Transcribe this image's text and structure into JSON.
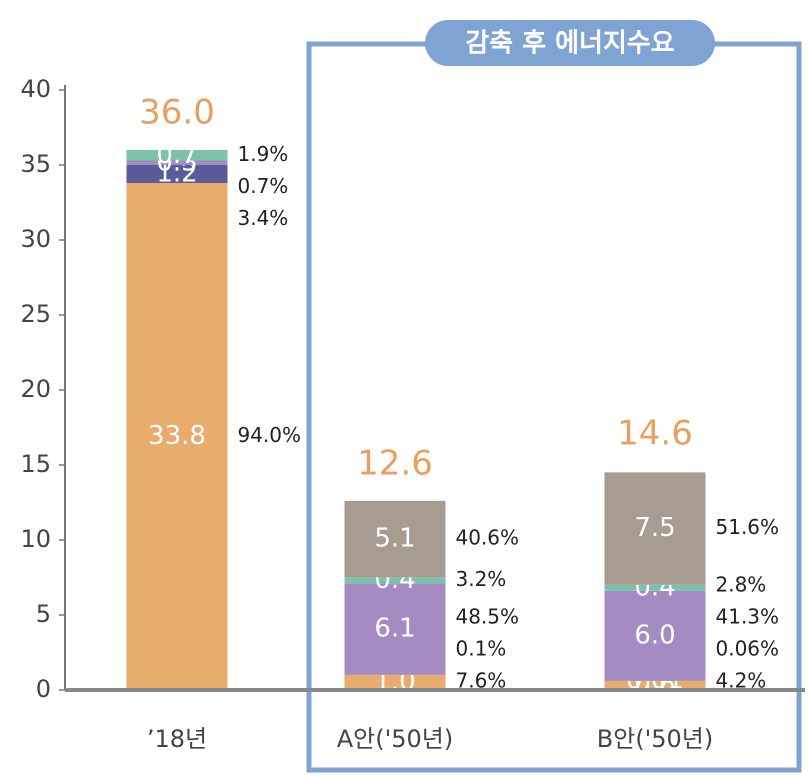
{
  "chart_data": {
    "type": "stacked-bar",
    "box_title": "감축 후 에너지수요",
    "categories": [
      "’18년",
      "A안('50년)",
      "B안('50년)"
    ],
    "ylim": [
      0,
      40
    ],
    "yticks": [
      0,
      5,
      10,
      15,
      20,
      25,
      30,
      35,
      40
    ],
    "totals": [
      36.0,
      12.6,
      14.6
    ],
    "total_labels": [
      "36.0",
      "12.6",
      "14.6"
    ],
    "series": [
      {
        "color": "#e8ac6c",
        "values": [
          33.8,
          1.0,
          0.6
        ],
        "value_labels": [
          "33.8",
          "1.0",
          "0.6"
        ],
        "shares": [
          94.0,
          7.6,
          4.2
        ],
        "share_labels": [
          "94.0%",
          "7.6%",
          "4.2%"
        ]
      },
      {
        "color": "#5b5b9c",
        "values": [
          1.2,
          0.01,
          0.01
        ],
        "value_labels": [
          "1.2",
          null,
          "0.01"
        ],
        "shares": [
          3.4,
          0.1,
          0.06
        ],
        "share_labels": [
          "3.4%",
          "0.1%",
          "0.06%"
        ]
      },
      {
        "color": "#a48cc2",
        "values": [
          0.3,
          6.1,
          6.0
        ],
        "value_labels": [
          "0.3",
          "6.1",
          "6.0"
        ],
        "shares": [
          0.7,
          48.5,
          41.3
        ],
        "share_labels": [
          "0.7%",
          "48.5%",
          "41.3%"
        ]
      },
      {
        "color": "#7cc2aa",
        "values": [
          0.7,
          0.4,
          0.4
        ],
        "value_labels": [
          "0.7",
          "0.4",
          "0.4"
        ],
        "shares": [
          1.9,
          3.2,
          2.8
        ],
        "share_labels": [
          "1.9%",
          "3.2%",
          "2.8%"
        ]
      },
      {
        "color": "#a89c90",
        "values": [
          null,
          5.1,
          7.5
        ],
        "value_labels": [
          null,
          "5.1",
          "7.5"
        ],
        "shares": [
          null,
          40.6,
          51.6
        ],
        "share_labels": [
          null,
          "40.6%",
          "51.6%"
        ]
      }
    ]
  }
}
